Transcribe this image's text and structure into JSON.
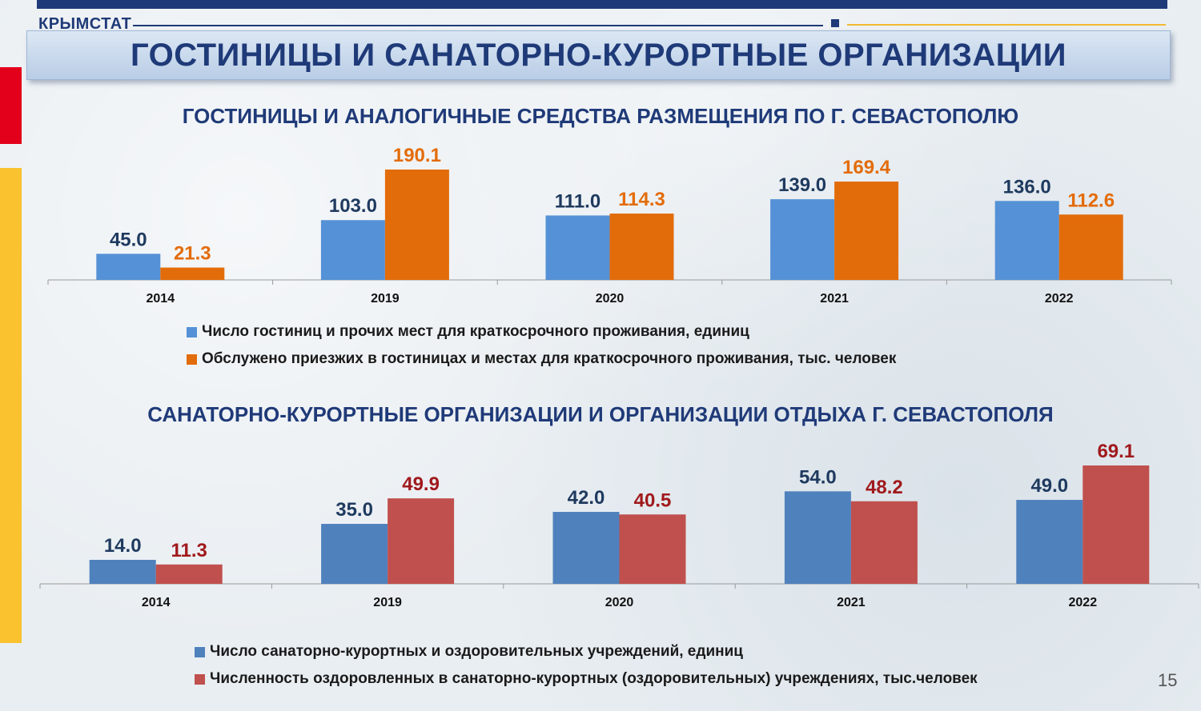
{
  "header": {
    "brand": "КРЫМСТАТ",
    "title": "ГОСТИНИЦЫ И САНАТОРНО-КУРОРТНЫЕ ОРГАНИЗАЦИИ",
    "page_number": "15"
  },
  "colors": {
    "navy": "#1f3a78",
    "accent_red": "#e3001b",
    "accent_gold": "#f9c22e"
  },
  "chart_data": [
    {
      "type": "bar",
      "title": "ГОСТИНИЦЫ И АНАЛОГИЧНЫЕ СРЕДСТВА РАЗМЕЩЕНИЯ ПО Г. СЕВАСТОПОЛЮ",
      "categories": [
        "2014",
        "2019",
        "2020",
        "2021",
        "2022"
      ],
      "series": [
        {
          "name": "Число гостиниц и прочих мест для краткосрочного проживания, единиц",
          "values": [
            45.0,
            103.0,
            111.0,
            139.0,
            136.0
          ],
          "labels": [
            "45.0",
            "103.0",
            "111.0",
            "139.0",
            "136.0"
          ],
          "color": "#5591d6",
          "label_color": "#1f3a5f"
        },
        {
          "name": "Обслужено приезжих в гостиницах и местах для краткосрочного проживания, тыс. человек",
          "values": [
            21.3,
            190.1,
            114.3,
            169.4,
            112.6
          ],
          "labels": [
            "21.3",
            "190.1",
            "114.3",
            "169.4",
            "112.6"
          ],
          "color": "#e36c0a",
          "label_color": "#e36c0a"
        }
      ],
      "grid": false,
      "legend_position": "bottom"
    },
    {
      "type": "bar",
      "title": "САНАТОРНО-КУРОРТНЫЕ ОРГАНИЗАЦИИ И ОРГАНИЗАЦИИ ОТДЫХА Г. СЕВАСТОПОЛЯ",
      "categories": [
        "2014",
        "2019",
        "2020",
        "2021",
        "2022"
      ],
      "series": [
        {
          "name": "Число санаторно-курортных и оздоровительных учреждений, единиц",
          "values": [
            14.0,
            35.0,
            42.0,
            54.0,
            49.0
          ],
          "labels": [
            "14.0",
            "35.0",
            "42.0",
            "54.0",
            "49.0"
          ],
          "color": "#4f81bd",
          "label_color": "#1f3a5f"
        },
        {
          "name": "Численность оздоровленных в санаторно-курортных (оздоровительных) учреждениях, тыс.человек",
          "values": [
            11.3,
            49.9,
            40.5,
            48.2,
            69.1
          ],
          "labels": [
            "11.3",
            "49.9",
            "40.5",
            "48.2",
            "69.1"
          ],
          "color": "#c0504d",
          "label_color": "#a0191c"
        }
      ],
      "grid": false,
      "legend_position": "bottom"
    }
  ]
}
